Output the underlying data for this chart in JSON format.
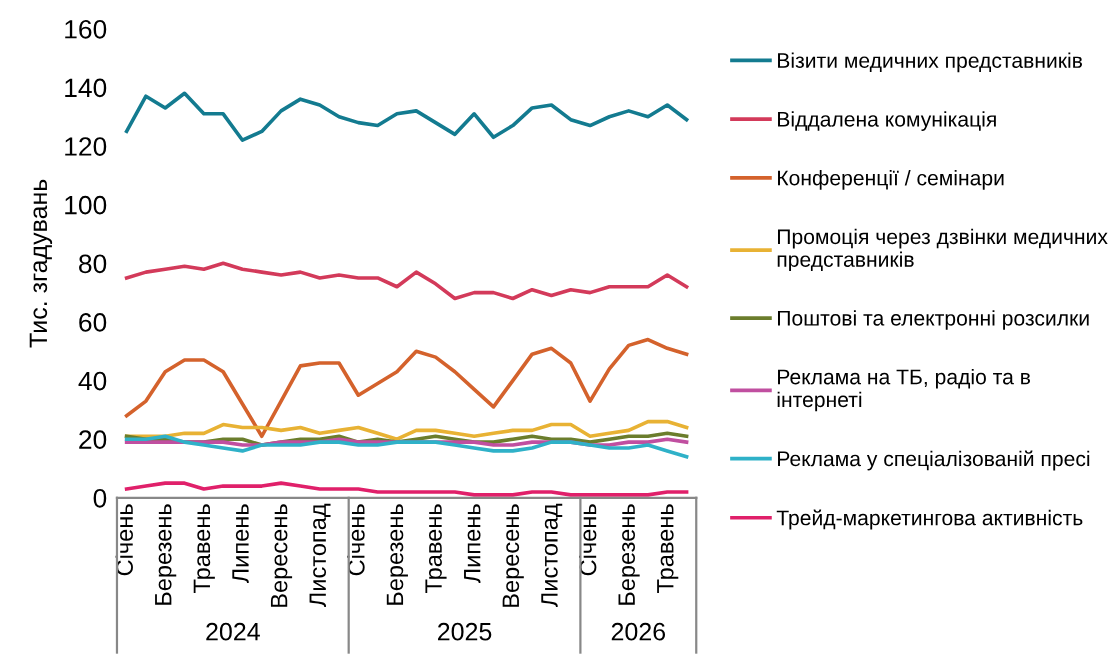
{
  "chart_data": {
    "type": "line",
    "ylabel": "Тис. згадувань",
    "categories": [
      "Січень",
      null,
      "Березень",
      null,
      "Травень",
      null,
      "Липень",
      null,
      "Вересень",
      null,
      "Листопад",
      null,
      "Січень",
      null,
      "Березень",
      null,
      "Травень",
      null,
      "Липень",
      null,
      "Вересень",
      null,
      "Листопад",
      null,
      "Січень",
      null,
      "Березень",
      null,
      "Травень",
      null
    ],
    "annotations": [
      "2024",
      "2025",
      "2026"
    ],
    "ylim": [
      0,
      160
    ],
    "yticks": [
      0,
      20,
      40,
      60,
      80,
      100,
      120,
      140,
      160
    ],
    "grid": false,
    "legend": "right",
    "marker": "none",
    "line_style": "solid",
    "series": [
      {
        "name": "Візити медичних представників",
        "color": "#137b90",
        "values": [
          125,
          137,
          133,
          138,
          131,
          131,
          122,
          125,
          132,
          136,
          134,
          130,
          128,
          127,
          131,
          132,
          128,
          124,
          131,
          123,
          127,
          133,
          134,
          129,
          127,
          130,
          132,
          130,
          134,
          129
        ]
      },
      {
        "name": "Віддалена комунікація",
        "color": "#d33a5a",
        "values": [
          75,
          77,
          78,
          79,
          78,
          80,
          78,
          77,
          76,
          77,
          75,
          76,
          75,
          75,
          72,
          77,
          73,
          68,
          70,
          70,
          68,
          71,
          69,
          71,
          70,
          72,
          72,
          72,
          76,
          72
        ]
      },
      {
        "name": "Конференції / семінари",
        "color": "#d4622c",
        "values": [
          28,
          33,
          43,
          47,
          47,
          43,
          32,
          21,
          33,
          45,
          46,
          46,
          35,
          39,
          43,
          50,
          48,
          43,
          37,
          31,
          40,
          49,
          51,
          46,
          33,
          44,
          52,
          54,
          51,
          49
        ]
      },
      {
        "name": "Промоція через дзвінки медичних представників",
        "color": "#e8b234",
        "values": [
          21,
          21,
          21,
          22,
          22,
          25,
          24,
          24,
          23,
          24,
          22,
          23,
          24,
          22,
          20,
          23,
          23,
          22,
          21,
          22,
          23,
          23,
          25,
          25,
          21,
          22,
          23,
          26,
          26,
          24
        ]
      },
      {
        "name": "Поштові та електронні розсилки",
        "color": "#6b7d2c",
        "values": [
          21,
          20,
          20,
          19,
          19,
          20,
          20,
          18,
          19,
          20,
          20,
          21,
          19,
          20,
          19,
          20,
          21,
          20,
          19,
          19,
          20,
          21,
          20,
          20,
          19,
          20,
          21,
          21,
          22,
          21
        ]
      },
      {
        "name": "Реклама на ТБ, радіо та в інтернеті",
        "color": "#c04fa0",
        "values": [
          19,
          19,
          19,
          19,
          19,
          19,
          18,
          18,
          19,
          19,
          19,
          20,
          19,
          19,
          19,
          19,
          19,
          19,
          19,
          18,
          18,
          19,
          19,
          19,
          18,
          18,
          19,
          19,
          20,
          19
        ]
      },
      {
        "name": "Реклама у спеціалізованій пресі",
        "color": "#2fb1c8",
        "values": [
          20,
          20,
          21,
          19,
          18,
          17,
          16,
          18,
          18,
          18,
          19,
          19,
          18,
          18,
          19,
          19,
          19,
          18,
          17,
          16,
          16,
          17,
          19,
          19,
          18,
          17,
          17,
          18,
          16,
          14
        ]
      },
      {
        "name": "Трейд-маркетингова активність",
        "color": "#e0206a",
        "values": [
          3,
          4,
          5,
          5,
          3,
          4,
          4,
          4,
          5,
          4,
          3,
          3,
          3,
          2,
          2,
          2,
          2,
          2,
          1,
          1,
          1,
          2,
          2,
          1,
          1,
          1,
          1,
          1,
          2,
          2
        ]
      }
    ]
  }
}
